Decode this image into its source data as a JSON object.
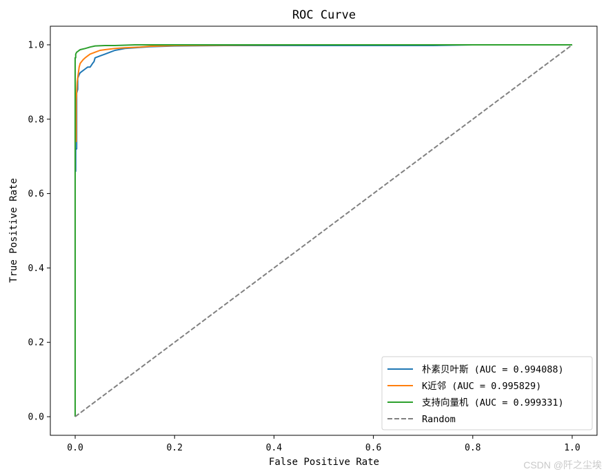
{
  "chart_data": {
    "type": "line",
    "title": "ROC Curve",
    "xlabel": "False Positive Rate",
    "ylabel": "True Positive Rate",
    "xlim": [
      -0.05,
      1.05
    ],
    "ylim": [
      -0.05,
      1.05
    ],
    "xticks": [
      0.0,
      0.2,
      0.4,
      0.6,
      0.8,
      1.0
    ],
    "xtick_labels": [
      "0.0",
      "0.2",
      "0.4",
      "0.6",
      "0.8",
      "1.0"
    ],
    "yticks": [
      0.0,
      0.2,
      0.4,
      0.6,
      0.8,
      1.0
    ],
    "ytick_labels": [
      "0.0",
      "0.2",
      "0.4",
      "0.6",
      "0.8",
      "1.0"
    ],
    "grid": false,
    "legend_position": "lower-right",
    "series": [
      {
        "name": "朴素贝叶斯 (AUC = 0.994088)",
        "color": "#1f77b4",
        "dashed": false,
        "x": [
          0,
          0,
          0.001,
          0.001,
          0.003,
          0.003,
          0.005,
          0.005,
          0.008,
          0.01,
          0.015,
          0.02,
          0.025,
          0.03,
          0.035,
          0.038,
          0.04,
          0.05,
          0.06,
          0.07,
          0.08,
          0.1,
          0.12,
          0.15,
          0.2,
          0.3,
          0.5,
          0.72,
          0.8,
          1.0
        ],
        "y": [
          0,
          0.66,
          0.66,
          0.72,
          0.72,
          0.87,
          0.88,
          0.91,
          0.92,
          0.925,
          0.93,
          0.935,
          0.94,
          0.94,
          0.95,
          0.955,
          0.965,
          0.97,
          0.975,
          0.98,
          0.985,
          0.99,
          0.992,
          0.995,
          0.997,
          0.998,
          0.998,
          0.998,
          1.0,
          1.0
        ]
      },
      {
        "name": "K近邻 (AUC = 0.995829)",
        "color": "#ff7f0e",
        "dashed": false,
        "x": [
          0,
          0,
          0.002,
          0.002,
          0.004,
          0.006,
          0.008,
          0.01,
          0.013,
          0.016,
          0.02,
          0.025,
          0.03,
          0.04,
          0.05,
          0.06,
          0.08,
          0.1,
          0.13,
          0.15,
          0.2,
          0.3,
          0.5,
          1.0
        ],
        "y": [
          0,
          0.74,
          0.74,
          0.85,
          0.9,
          0.92,
          0.94,
          0.95,
          0.955,
          0.96,
          0.965,
          0.97,
          0.975,
          0.98,
          0.985,
          0.987,
          0.99,
          0.992,
          0.994,
          0.996,
          0.998,
          0.999,
          1.0,
          1.0
        ]
      },
      {
        "name": "支持向量机 (AUC = 0.999331)",
        "color": "#2ca02c",
        "dashed": false,
        "x": [
          0,
          0,
          0.001,
          0.001,
          0.003,
          0.005,
          0.008,
          0.01,
          0.02,
          0.03,
          0.04,
          0.06,
          0.08,
          0.1,
          0.12,
          0.18,
          1.0
        ],
        "y": [
          0,
          0.965,
          0.965,
          0.975,
          0.98,
          0.982,
          0.985,
          0.987,
          0.99,
          0.994,
          0.997,
          0.998,
          0.998,
          0.999,
          1.0,
          1.0,
          1.0
        ]
      },
      {
        "name": "Random",
        "color": "#808080",
        "dashed": true,
        "x": [
          0,
          1
        ],
        "y": [
          0,
          1
        ]
      }
    ]
  },
  "watermark": "CSDN @阡之尘埃"
}
